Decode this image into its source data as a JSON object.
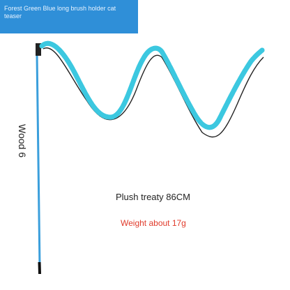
{
  "header": {
    "title": "Forest Green Blue long brush holder cat teaser"
  },
  "labels": {
    "stick": "Wood 6",
    "length": "Plush treaty 86CM",
    "weight": "Weight about 17g"
  }
}
